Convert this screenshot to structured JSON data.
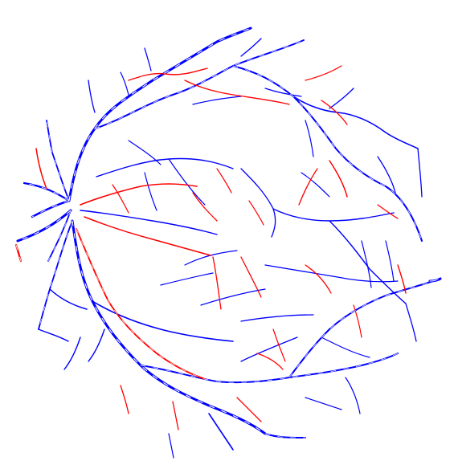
{
  "image": {
    "kind": "retinal-vessel-segmentation-map",
    "background_color": "#ffffff",
    "colors": {
      "primary_vessels": "#0000ff",
      "secondary_vessels": "#ff0000"
    }
  }
}
